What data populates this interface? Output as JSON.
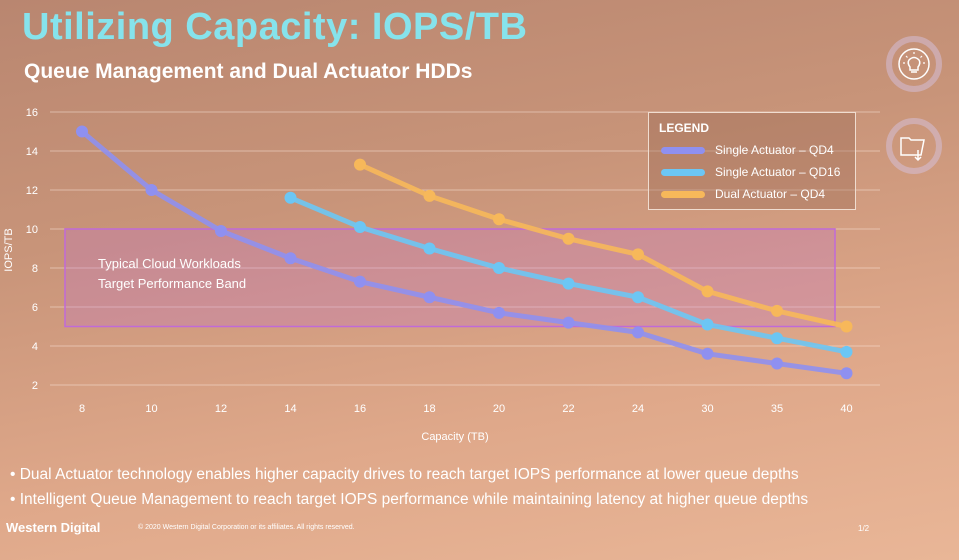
{
  "slide": {
    "title": "Utilizing Capacity: IOPS/TB",
    "subtitle": "Queue Management and Dual Actuator HDDs",
    "band_label_line1": "Typical Cloud Workloads",
    "band_label_line2": "Target Performance Band",
    "bullets": [
      "Dual Actuator technology enables higher capacity drives to reach target IOPS performance at lower queue depths",
      "Intelligent Queue Management to reach target IOPS performance while maintaining latency at higher queue depths"
    ],
    "footer_logo": "Western Digital",
    "copyright": "© 2020 Western Digital Corporation or its affiliates. All rights reserved.",
    "page": "1/2",
    "icons": [
      "lightbulb-icon",
      "folder-download-icon"
    ]
  },
  "chart_data": {
    "type": "line",
    "xlabel": "Capacity (TB)",
    "ylabel": "IOPS/TB",
    "categories": [
      "8",
      "10",
      "12",
      "14",
      "16",
      "18",
      "20",
      "22",
      "24",
      "30",
      "35",
      "40"
    ],
    "ylim": [
      2,
      16
    ],
    "yticks": [
      2,
      4,
      6,
      8,
      10,
      12,
      14,
      16
    ],
    "grid": true,
    "legend_title": "LEGEND",
    "legend_position": "top-right",
    "band": {
      "ymin": 5,
      "ymax": 10,
      "color": "#c06ad8"
    },
    "series": [
      {
        "name": "Single Actuator – QD4",
        "color": "#8f90f0",
        "values": [
          15.0,
          12.0,
          9.9,
          8.5,
          7.3,
          6.5,
          5.7,
          5.2,
          4.7,
          3.6,
          3.1,
          2.6
        ]
      },
      {
        "name": "Single Actuator – QD16",
        "color": "#6cc6f4",
        "values": [
          null,
          null,
          null,
          11.6,
          10.1,
          9.0,
          8.0,
          7.2,
          6.5,
          5.1,
          4.4,
          3.7
        ]
      },
      {
        "name": "Dual Actuator – QD4",
        "color": "#f7b85a",
        "values": [
          null,
          null,
          null,
          null,
          13.3,
          11.7,
          10.5,
          9.5,
          8.7,
          6.8,
          5.8,
          5.0
        ]
      }
    ]
  }
}
